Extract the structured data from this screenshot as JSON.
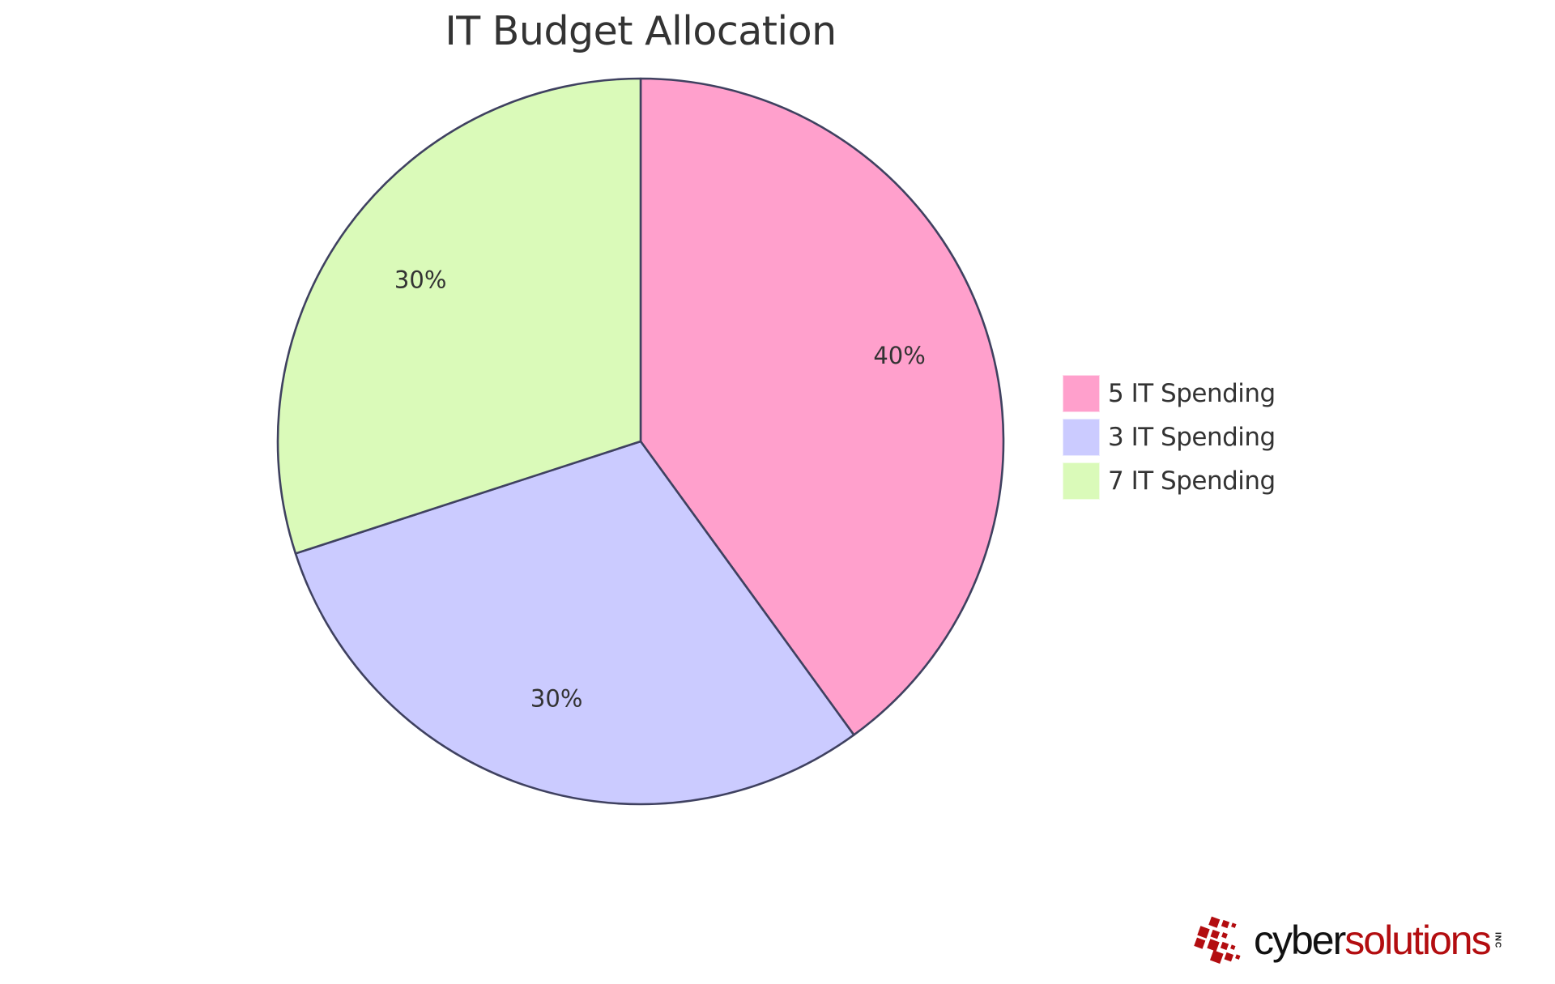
{
  "chart_data": {
    "type": "pie",
    "title": "IT Budget Allocation",
    "categories": [
      "5 IT Spending",
      "3 IT Spending",
      "7 IT Spending"
    ],
    "values": [
      40,
      30,
      30
    ],
    "value_labels": [
      "40%",
      "30%",
      "30%"
    ],
    "colors": [
      "#ffa0cc",
      "#cbcbff",
      "#dafab9"
    ],
    "stroke_color": "#3f4160",
    "start_angle_deg": 0,
    "direction": "clockwise",
    "legend_position": "right"
  },
  "title": "IT Budget Allocation",
  "slices": [
    {
      "label": "40%",
      "color": "#ffa0cc",
      "value": 40
    },
    {
      "label": "30%",
      "color": "#cbcbff",
      "value": 30
    },
    {
      "label": "30%",
      "color": "#dafab9",
      "value": 30
    }
  ],
  "legend": {
    "items": [
      {
        "label": "5 IT Spending",
        "color": "#ffa0cc"
      },
      {
        "label": "3 IT Spending",
        "color": "#cbcbff"
      },
      {
        "label": "7 IT Spending",
        "color": "#dafab9"
      }
    ]
  },
  "logo": {
    "part1": "cyber",
    "part2": "solutions",
    "suffix": "INC",
    "primary_color": "#b30d10",
    "secondary_color": "#111111"
  }
}
